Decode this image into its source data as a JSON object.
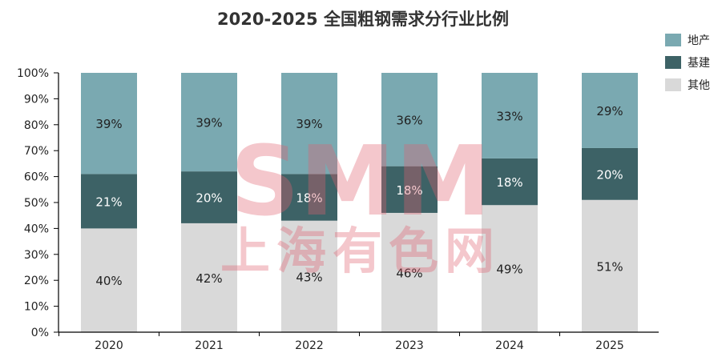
{
  "chart_data": {
    "type": "bar",
    "stacked": true,
    "title": "2020-2025 全国粗钢需求分行业比例",
    "categories": [
      "2020",
      "2021",
      "2022",
      "2023",
      "2024",
      "2025"
    ],
    "series": [
      {
        "name": "其他",
        "values": [
          40,
          42,
          43,
          46,
          49,
          51
        ],
        "color": "#d9d9d9",
        "label_color": "#222222"
      },
      {
        "name": "基建",
        "values": [
          21,
          20,
          18,
          18,
          18,
          20
        ],
        "color": "#3d6266",
        "label_color": "#ffffff"
      },
      {
        "name": "地产",
        "values": [
          39,
          39,
          39,
          36,
          33,
          29
        ],
        "color": "#7aa9b1",
        "label_color": "#222222"
      }
    ],
    "data_labels": [
      [
        "40%",
        "42%",
        "43%",
        "46%",
        "49%",
        "51%"
      ],
      [
        "21%",
        "20%",
        "18%",
        "18%",
        "18%",
        "20%"
      ],
      [
        "39%",
        "39%",
        "39%",
        "36%",
        "33%",
        "29%"
      ]
    ],
    "yticks": [
      "0%",
      "10%",
      "20%",
      "30%",
      "40%",
      "50%",
      "60%",
      "70%",
      "80%",
      "90%",
      "100%"
    ],
    "ylim": [
      0,
      100
    ],
    "grid": false,
    "legend": "right",
    "legend_order": [
      "地产",
      "基建",
      "其他"
    ],
    "watermark": "SMM 上海有色网"
  }
}
